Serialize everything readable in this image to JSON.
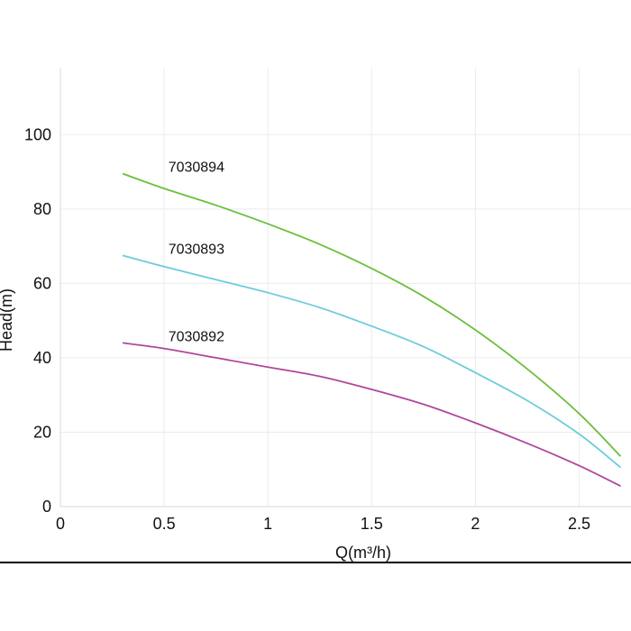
{
  "chart_data": {
    "type": "line",
    "xlabel": "Q(m³/h)",
    "ylabel": "Head(m)",
    "xlim": [
      0,
      2.75
    ],
    "ylim": [
      0,
      118
    ],
    "x_ticks": [
      "0",
      "0.5",
      "1",
      "1.5",
      "2",
      "2.5"
    ],
    "y_ticks": [
      "0",
      "20",
      "40",
      "60",
      "80",
      "100"
    ],
    "grid": true,
    "series": [
      {
        "name": "7030894",
        "color": "#6cbf3c",
        "x": [
          0.3,
          0.5,
          0.75,
          1.0,
          1.25,
          1.5,
          1.75,
          2.0,
          2.25,
          2.5,
          2.7
        ],
        "y": [
          89.5,
          85.5,
          81,
          76,
          70.5,
          64,
          56.5,
          47.5,
          37,
          25,
          13.5
        ]
      },
      {
        "name": "7030893",
        "color": "#6ecbdc",
        "x": [
          0.3,
          0.5,
          0.75,
          1.0,
          1.25,
          1.5,
          1.75,
          2.0,
          2.25,
          2.5,
          2.7
        ],
        "y": [
          67.5,
          64.5,
          61,
          57.5,
          53.5,
          48.5,
          43,
          36,
          28.5,
          19.5,
          10.5
        ]
      },
      {
        "name": "7030892",
        "color": "#b0479c",
        "x": [
          0.3,
          0.5,
          0.75,
          1.0,
          1.25,
          1.5,
          1.75,
          2.0,
          2.25,
          2.5,
          2.7
        ],
        "y": [
          44,
          42.5,
          40,
          37.5,
          35,
          31.5,
          27.5,
          22.5,
          17,
          11,
          5.5
        ]
      }
    ]
  }
}
